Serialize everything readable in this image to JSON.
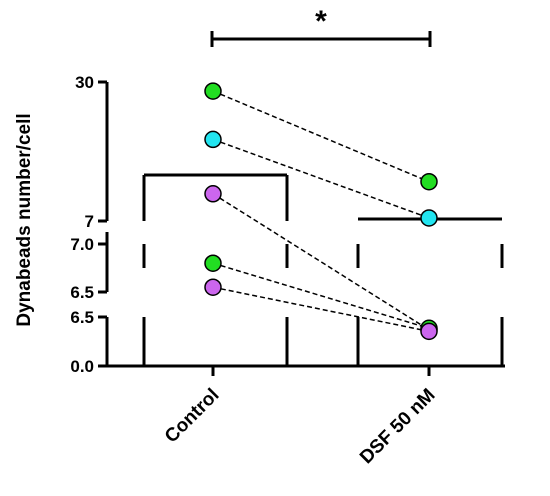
{
  "chart_data": {
    "type": "scatter",
    "subtype": "paired before-after with broken (segmented) y-axis and bars",
    "ylabel": "Dynabeads number/cell",
    "categories": [
      "Control",
      "DSF 50 nM"
    ],
    "y_tick_labels": [
      "30",
      "7",
      "7.0",
      "6.5",
      "6.5",
      "0.0"
    ],
    "bars": [
      {
        "category": "Control",
        "value": 15
      },
      {
        "category": "DSF 50 nM",
        "value": 7
      }
    ],
    "pairs": [
      {
        "color": "#22dd22",
        "control": 28.5,
        "dsf": 13.5
      },
      {
        "color": "#22e5f0",
        "control": 20.5,
        "dsf": 7.5
      },
      {
        "color": "#cc66ee",
        "control": 11.5,
        "dsf": 4.8
      },
      {
        "color": "#22dd22",
        "control": 6.8,
        "dsf": 5.0
      },
      {
        "color": "#cc66ee",
        "control": 6.55,
        "dsf": 4.6
      }
    ],
    "significance": {
      "between": [
        "Control",
        "DSF 50 nM"
      ],
      "label": "*"
    },
    "colors": {
      "green": "#22dd22",
      "cyan": "#22e5f0",
      "purple": "#cc66ee"
    }
  }
}
